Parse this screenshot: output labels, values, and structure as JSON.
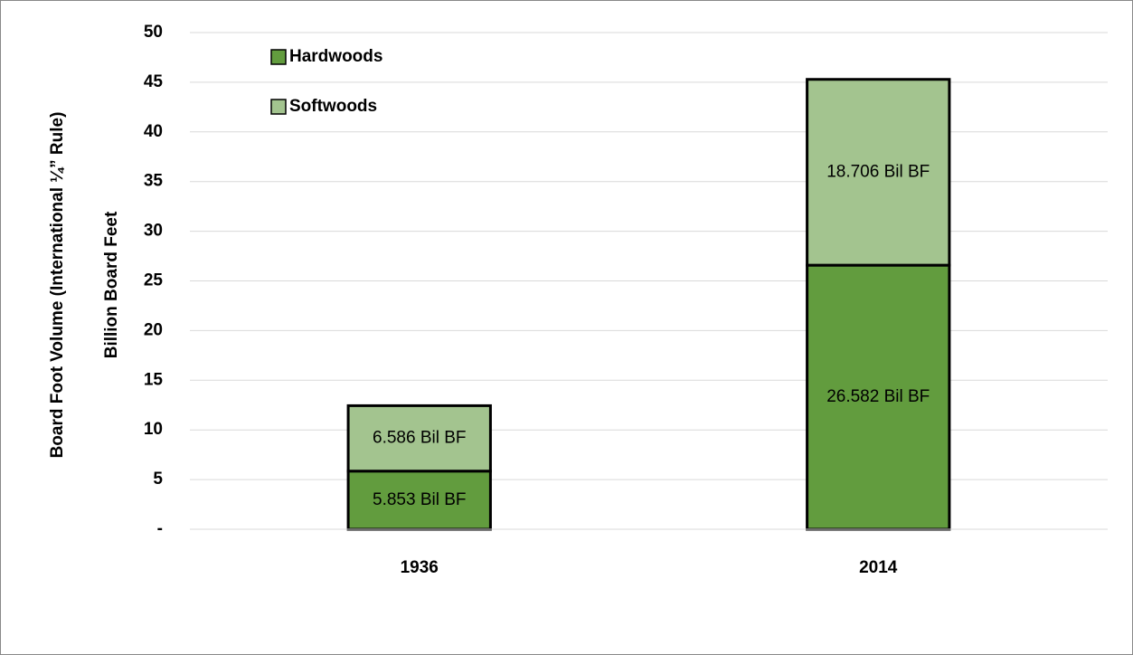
{
  "chart_data": {
    "type": "stacked_bar",
    "y_label": [
      "Board Foot Volume (International ¼” Rule)",
      "Billion Board Feet"
    ],
    "categories": [
      "1936",
      "2014"
    ],
    "series": [
      {
        "name": "Hardwoods",
        "color": "#629c3e",
        "values": [
          5.853,
          26.582
        ],
        "value_labels": [
          "5.853 Bil BF",
          "26.582 Bil BF"
        ]
      },
      {
        "name": "Softwoods",
        "color": "#a3c48f",
        "values": [
          6.586,
          18.706
        ],
        "value_labels": [
          "6.586 Bil BF",
          "18.706 Bil BF"
        ]
      }
    ],
    "ylim": [
      0,
      50
    ],
    "yticks": [
      {
        "value": 0,
        "label": "-"
      },
      5,
      10,
      15,
      20,
      25,
      30,
      35,
      40,
      45,
      50
    ],
    "grid": true,
    "legend": "top-left"
  }
}
